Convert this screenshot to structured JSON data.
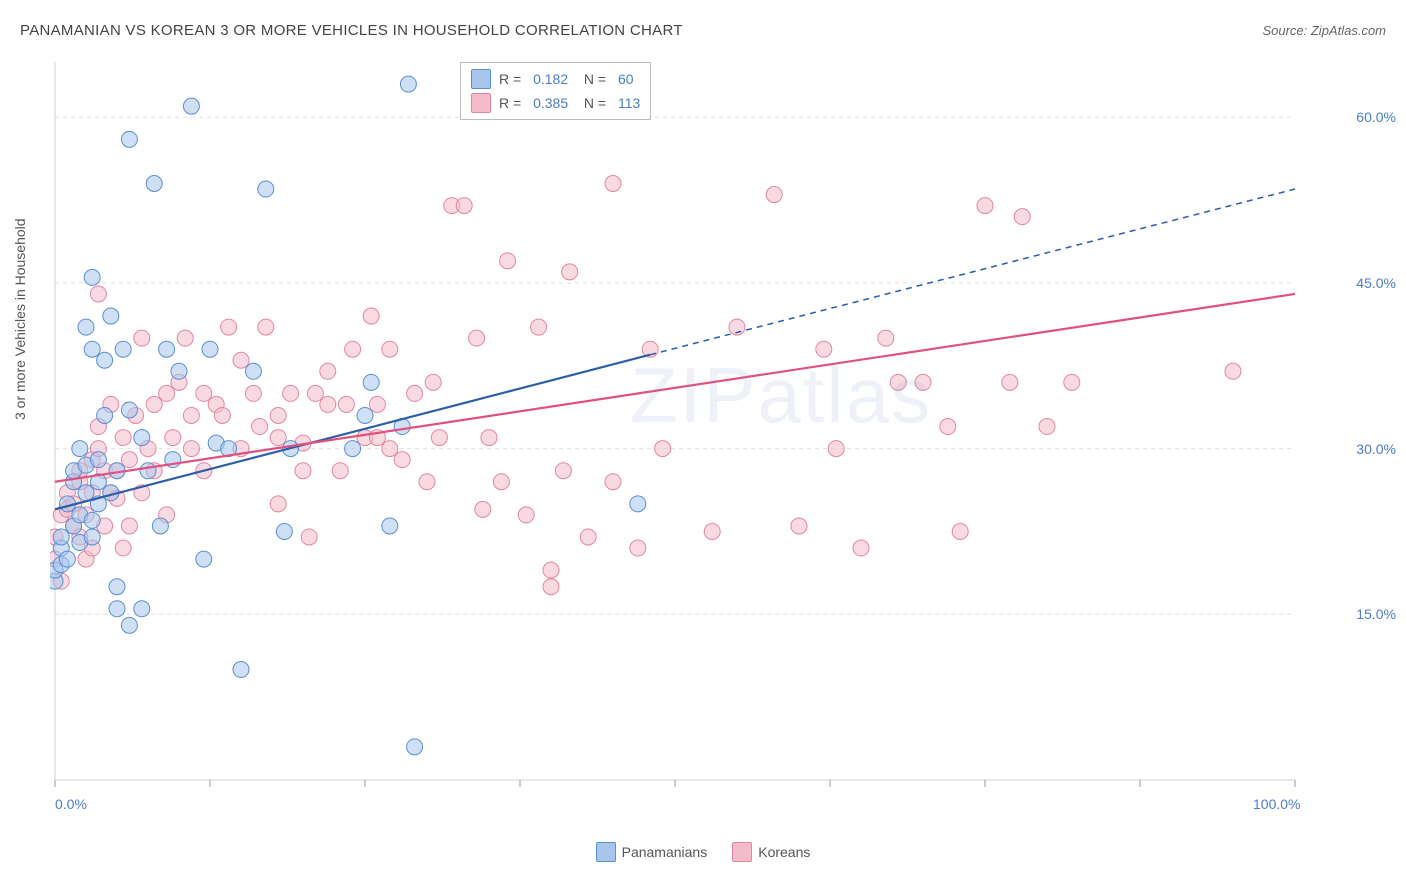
{
  "title": "PANAMANIAN VS KOREAN 3 OR MORE VEHICLES IN HOUSEHOLD CORRELATION CHART",
  "source": "Source: ZipAtlas.com",
  "y_axis_label": "3 or more Vehicles in Household",
  "watermark": "ZIPatlas",
  "chart": {
    "type": "scatter",
    "xlim": [
      0,
      100
    ],
    "ylim": [
      0,
      65
    ],
    "x_ticks": [
      0,
      12.5,
      25,
      37.5,
      50,
      62.5,
      75,
      87.5,
      100
    ],
    "x_tick_labels_shown": {
      "0": "0.0%",
      "100": "100.0%"
    },
    "y_grid": [
      15,
      30,
      45,
      60
    ],
    "y_tick_labels": {
      "15": "15.0%",
      "30": "30.0%",
      "45": "45.0%",
      "60": "60.0%"
    },
    "background_color": "#ffffff",
    "grid_color": "#e0e0e0",
    "axis_color": "#d0d0d0",
    "marker_radius": 8,
    "marker_opacity": 0.55,
    "series": [
      {
        "name": "Panamanians",
        "color_fill": "#a8c6ec",
        "color_stroke": "#5a8fd4",
        "R": "0.182",
        "N": "60",
        "trend": {
          "x1": 0,
          "y1": 24.5,
          "x2": 48,
          "y2": 38.5,
          "color": "#2d5fa8",
          "width": 2.2,
          "solid": true,
          "ext_x2": 100,
          "ext_y2": 53.5,
          "ext_dash": true
        },
        "points": [
          [
            0,
            18
          ],
          [
            0,
            19
          ],
          [
            0.5,
            21
          ],
          [
            0.5,
            22
          ],
          [
            0.5,
            19.5
          ],
          [
            1,
            20
          ],
          [
            1,
            25
          ],
          [
            1.5,
            23
          ],
          [
            1.5,
            27
          ],
          [
            1.5,
            28
          ],
          [
            2,
            21.5
          ],
          [
            2,
            24
          ],
          [
            2,
            30
          ],
          [
            2.5,
            26
          ],
          [
            2.5,
            28.5
          ],
          [
            2.5,
            41
          ],
          [
            3,
            22
          ],
          [
            3,
            23.5
          ],
          [
            3,
            39
          ],
          [
            3,
            45.5
          ],
          [
            3.5,
            25
          ],
          [
            3.5,
            27
          ],
          [
            3.5,
            29
          ],
          [
            4,
            33
          ],
          [
            4,
            38
          ],
          [
            4.5,
            26
          ],
          [
            4.5,
            42
          ],
          [
            5,
            15.5
          ],
          [
            5,
            17.5
          ],
          [
            5,
            28
          ],
          [
            5.5,
            39
          ],
          [
            6,
            14
          ],
          [
            6,
            33.5
          ],
          [
            6,
            58
          ],
          [
            7,
            15.5
          ],
          [
            7,
            31
          ],
          [
            7.5,
            28
          ],
          [
            8,
            54
          ],
          [
            8.5,
            23
          ],
          [
            9,
            39
          ],
          [
            9.5,
            29
          ],
          [
            10,
            37
          ],
          [
            11,
            61
          ],
          [
            12,
            20
          ],
          [
            12.5,
            39
          ],
          [
            13,
            30.5
          ],
          [
            14,
            30
          ],
          [
            15,
            10
          ],
          [
            16,
            37
          ],
          [
            17,
            53.5
          ],
          [
            18.5,
            22.5
          ],
          [
            19,
            30
          ],
          [
            24,
            30
          ],
          [
            25,
            33
          ],
          [
            25.5,
            36
          ],
          [
            27,
            23
          ],
          [
            28,
            32
          ],
          [
            28.5,
            63
          ],
          [
            29,
            3
          ],
          [
            47,
            25
          ]
        ]
      },
      {
        "name": "Koreans",
        "color_fill": "#f4bcca",
        "color_stroke": "#e486a0",
        "R": "0.385",
        "N": "113",
        "trend": {
          "x1": 0,
          "y1": 27,
          "x2": 100,
          "y2": 44,
          "color": "#e05080",
          "width": 2.2,
          "solid": true
        },
        "points": [
          [
            0,
            20
          ],
          [
            0,
            22
          ],
          [
            0.5,
            18
          ],
          [
            0.5,
            24
          ],
          [
            1,
            24.5
          ],
          [
            1,
            26
          ],
          [
            1.5,
            23
          ],
          [
            1.5,
            25
          ],
          [
            2,
            22
          ],
          [
            2,
            27
          ],
          [
            2,
            28
          ],
          [
            2.5,
            20
          ],
          [
            2.5,
            24
          ],
          [
            3,
            21
          ],
          [
            3,
            26
          ],
          [
            3,
            29
          ],
          [
            3.5,
            30
          ],
          [
            3.5,
            32
          ],
          [
            3.5,
            44
          ],
          [
            4,
            23
          ],
          [
            4,
            28
          ],
          [
            4.5,
            26
          ],
          [
            4.5,
            34
          ],
          [
            5,
            28
          ],
          [
            5,
            25.5
          ],
          [
            5.5,
            21
          ],
          [
            5.5,
            31
          ],
          [
            6,
            23
          ],
          [
            6,
            29
          ],
          [
            6.5,
            33
          ],
          [
            7,
            26
          ],
          [
            7,
            40
          ],
          [
            7.5,
            30
          ],
          [
            8,
            28
          ],
          [
            8,
            34
          ],
          [
            9,
            24
          ],
          [
            9,
            35
          ],
          [
            9.5,
            31
          ],
          [
            10,
            36
          ],
          [
            10.5,
            40
          ],
          [
            11,
            30
          ],
          [
            11,
            33
          ],
          [
            12,
            28
          ],
          [
            12,
            35
          ],
          [
            13,
            34
          ],
          [
            13.5,
            33
          ],
          [
            14,
            41
          ],
          [
            15,
            30
          ],
          [
            15,
            38
          ],
          [
            16,
            35
          ],
          [
            16.5,
            32
          ],
          [
            17,
            41
          ],
          [
            18,
            33
          ],
          [
            18,
            25
          ],
          [
            18,
            31
          ],
          [
            19,
            35
          ],
          [
            20,
            30.5
          ],
          [
            20,
            28
          ],
          [
            20.5,
            22
          ],
          [
            21,
            35
          ],
          [
            22,
            34
          ],
          [
            22,
            37
          ],
          [
            23,
            28
          ],
          [
            23.5,
            34
          ],
          [
            24,
            39
          ],
          [
            25,
            31
          ],
          [
            25.5,
            42
          ],
          [
            26,
            31
          ],
          [
            26,
            34
          ],
          [
            27,
            30
          ],
          [
            27,
            39
          ],
          [
            28,
            29
          ],
          [
            29,
            35
          ],
          [
            30,
            27
          ],
          [
            30.5,
            36
          ],
          [
            31,
            31
          ],
          [
            32,
            52
          ],
          [
            33,
            52
          ],
          [
            34,
            40
          ],
          [
            34.5,
            24.5
          ],
          [
            35,
            31
          ],
          [
            36,
            27
          ],
          [
            36.5,
            47
          ],
          [
            38,
            24
          ],
          [
            39,
            41
          ],
          [
            40,
            17.5
          ],
          [
            40,
            19
          ],
          [
            41,
            28
          ],
          [
            41.5,
            46
          ],
          [
            43,
            22
          ],
          [
            45,
            27
          ],
          [
            45,
            54
          ],
          [
            47,
            21
          ],
          [
            48,
            39
          ],
          [
            49,
            30
          ],
          [
            53,
            22.5
          ],
          [
            55,
            41
          ],
          [
            58,
            53
          ],
          [
            60,
            23
          ],
          [
            62,
            39
          ],
          [
            63,
            30
          ],
          [
            65,
            21
          ],
          [
            67,
            40
          ],
          [
            68,
            36
          ],
          [
            70,
            36
          ],
          [
            72,
            32
          ],
          [
            73,
            22.5
          ],
          [
            75,
            52
          ],
          [
            77,
            36
          ],
          [
            78,
            51
          ],
          [
            80,
            32
          ],
          [
            82,
            36
          ],
          [
            95,
            37
          ]
        ]
      }
    ]
  },
  "bottom_legend": [
    {
      "label": "Panamanians",
      "fill": "#a8c6ec",
      "stroke": "#5a8fd4"
    },
    {
      "label": "Koreans",
      "fill": "#f4bcca",
      "stroke": "#e486a0"
    }
  ]
}
